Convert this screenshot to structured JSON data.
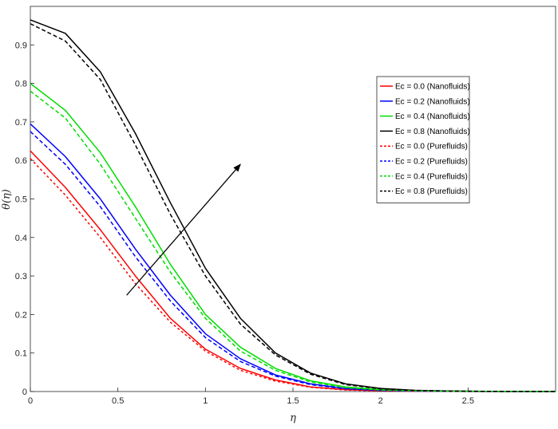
{
  "chart_data": {
    "type": "line",
    "xlabel": "η",
    "ylabel": "θ(η)",
    "xlim": [
      0,
      3
    ],
    "ylim": [
      0,
      1
    ],
    "xticks": [
      0,
      0.5,
      1,
      1.5,
      2,
      2.5
    ],
    "xtick_labels": [
      "0",
      "0.5",
      "1",
      "1.5",
      "2",
      "2.5"
    ],
    "yticks": [
      0,
      0.1,
      0.2,
      0.3,
      0.4,
      0.5,
      0.6,
      0.7,
      0.8,
      0.9
    ],
    "ytick_labels": [
      "0",
      "0.1",
      "0.2",
      "0.3",
      "0.4",
      "0.5",
      "0.6",
      "0.7",
      "0.8",
      "0.9"
    ],
    "grid": false,
    "legend_position": "upper-right",
    "x": [
      0,
      0.2,
      0.4,
      0.6,
      0.8,
      1.0,
      1.2,
      1.4,
      1.6,
      1.8,
      2.0,
      2.2,
      2.4,
      2.6,
      2.8,
      3.0
    ],
    "series": [
      {
        "name": "Ec = 0.0 (Nanofluids)",
        "color": "#ff0000",
        "dash": "solid",
        "values": [
          0.625,
          0.53,
          0.42,
          0.3,
          0.19,
          0.11,
          0.06,
          0.03,
          0.012,
          0.005,
          0.002,
          0.001,
          0.0005,
          0.0002,
          0.0001,
          0.0
        ]
      },
      {
        "name": "Ec = 0.2 (Nanofluids)",
        "color": "#0000ff",
        "dash": "solid",
        "values": [
          0.695,
          0.61,
          0.5,
          0.37,
          0.25,
          0.15,
          0.085,
          0.043,
          0.02,
          0.008,
          0.003,
          0.0013,
          0.0006,
          0.0003,
          0.0001,
          0.0
        ]
      },
      {
        "name": "Ec = 0.4 (Nanofluids)",
        "color": "#00dd00",
        "dash": "solid",
        "values": [
          0.8,
          0.73,
          0.62,
          0.48,
          0.33,
          0.2,
          0.115,
          0.06,
          0.028,
          0.012,
          0.005,
          0.002,
          0.0009,
          0.0004,
          0.0002,
          0.0
        ]
      },
      {
        "name": "Ec = 0.8 (Nanofluids)",
        "color": "#000000",
        "dash": "solid",
        "values": [
          0.965,
          0.93,
          0.83,
          0.67,
          0.49,
          0.32,
          0.19,
          0.1,
          0.048,
          0.02,
          0.008,
          0.003,
          0.0013,
          0.0005,
          0.0002,
          0.0
        ]
      },
      {
        "name": "Ec = 0.0 (Purefluids)",
        "color": "#ff0000",
        "dash": "dotted",
        "values": [
          0.605,
          0.51,
          0.4,
          0.28,
          0.18,
          0.105,
          0.055,
          0.027,
          0.011,
          0.004,
          0.0015,
          0.0007,
          0.0003,
          0.0001,
          0.0,
          0.0
        ]
      },
      {
        "name": "Ec = 0.2 (Purefluids)",
        "color": "#0000ff",
        "dash": "dashed",
        "values": [
          0.675,
          0.59,
          0.48,
          0.35,
          0.235,
          0.14,
          0.078,
          0.04,
          0.018,
          0.007,
          0.0027,
          0.001,
          0.0005,
          0.0002,
          0.0001,
          0.0
        ]
      },
      {
        "name": "Ec = 0.4 (Purefluids)",
        "color": "#00dd00",
        "dash": "dashed",
        "values": [
          0.78,
          0.71,
          0.59,
          0.45,
          0.31,
          0.19,
          0.105,
          0.055,
          0.025,
          0.01,
          0.004,
          0.0017,
          0.0008,
          0.0003,
          0.0001,
          0.0
        ]
      },
      {
        "name": "Ec = 0.8 (Purefluids)",
        "color": "#000000",
        "dash": "dashed",
        "values": [
          0.955,
          0.91,
          0.81,
          0.64,
          0.46,
          0.3,
          0.175,
          0.095,
          0.045,
          0.018,
          0.007,
          0.0028,
          0.0012,
          0.0005,
          0.0002,
          0.0
        ]
      }
    ],
    "annotations": [
      {
        "type": "arrow",
        "from": [
          0.55,
          0.25
        ],
        "to": [
          1.2,
          0.59
        ],
        "color": "#000000"
      }
    ]
  }
}
